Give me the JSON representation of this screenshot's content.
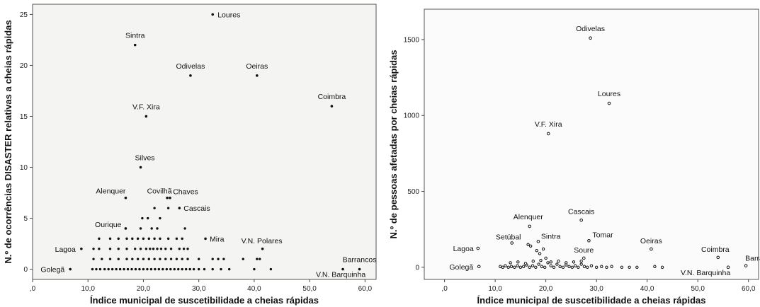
{
  "chart_data": [
    {
      "type": "scatter",
      "title": "",
      "xlabel": "Índice municipal de suscetibilidade a cheias rápidas",
      "ylabel": "N.º de ocorrências DISASTER relativas a cheias rápidas",
      "xlim": [
        0,
        62
      ],
      "ylim": [
        -1,
        26
      ],
      "x_ticks": [
        0,
        10,
        20,
        30,
        40,
        50,
        60
      ],
      "x_tick_labels": [
        ",0",
        "10,0",
        "20,0",
        "30,0",
        "40,0",
        "50,0",
        "60,0"
      ],
      "y_ticks": [
        0,
        5,
        10,
        15,
        20,
        25
      ],
      "y_tick_labels": [
        "0",
        "5",
        "10",
        "15",
        "20",
        "25"
      ],
      "grid": false,
      "labeled_points": [
        {
          "label": "Loures",
          "x": 32.5,
          "y": 25
        },
        {
          "label": "Sintra",
          "x": 18.5,
          "y": 22
        },
        {
          "label": "Odivelas",
          "x": 28.5,
          "y": 19
        },
        {
          "label": "Oeiras",
          "x": 40.5,
          "y": 19
        },
        {
          "label": "Coimbra",
          "x": 54,
          "y": 16
        },
        {
          "label": "V.F. Xira",
          "x": 20.5,
          "y": 15
        },
        {
          "label": "Silves",
          "x": 19.5,
          "y": 10
        },
        {
          "label": "Alenquer",
          "x": 16.8,
          "y": 7
        },
        {
          "label": "Covilhã",
          "x": 24.3,
          "y": 7
        },
        {
          "label": "Chaves",
          "x": 24.8,
          "y": 7
        },
        {
          "label": "Cascais",
          "x": 26.5,
          "y": 6
        },
        {
          "label": "Ourique",
          "x": 16.8,
          "y": 4
        },
        {
          "label": "Mira",
          "x": 31.2,
          "y": 3
        },
        {
          "label": "Lagoa",
          "x": 8.8,
          "y": 2
        },
        {
          "label": "V.N. Polares",
          "x": 41.5,
          "y": 2
        },
        {
          "label": "Barrancos",
          "x": 59,
          "y": 0
        },
        {
          "label": "Golegã",
          "x": 6.8,
          "y": 0
        },
        {
          "label": "V.N. Barquinha",
          "x": 56,
          "y": 0
        }
      ],
      "other_points": [
        [
          10.8,
          0
        ],
        [
          11.5,
          0
        ],
        [
          12.2,
          0
        ],
        [
          13,
          0
        ],
        [
          13.7,
          0
        ],
        [
          14.4,
          0
        ],
        [
          15.1,
          0
        ],
        [
          15.8,
          0
        ],
        [
          16.5,
          0
        ],
        [
          17.2,
          0
        ],
        [
          17.9,
          0
        ],
        [
          18.6,
          0
        ],
        [
          19.3,
          0
        ],
        [
          20,
          0
        ],
        [
          20.7,
          0
        ],
        [
          21.4,
          0
        ],
        [
          22.1,
          0
        ],
        [
          22.8,
          0
        ],
        [
          23.5,
          0
        ],
        [
          24.2,
          0
        ],
        [
          24.9,
          0
        ],
        [
          25.6,
          0
        ],
        [
          26.3,
          0
        ],
        [
          27,
          0
        ],
        [
          27.7,
          0
        ],
        [
          28.4,
          0
        ],
        [
          29.1,
          0
        ],
        [
          30,
          0
        ],
        [
          31,
          0
        ],
        [
          32.5,
          0
        ],
        [
          34,
          0
        ],
        [
          35.5,
          0
        ],
        [
          40,
          0
        ],
        [
          43,
          0
        ],
        [
          11,
          1
        ],
        [
          12.5,
          1
        ],
        [
          14,
          1
        ],
        [
          15.5,
          1
        ],
        [
          17,
          1
        ],
        [
          18,
          1
        ],
        [
          19,
          1
        ],
        [
          20,
          1
        ],
        [
          21,
          1
        ],
        [
          22,
          1
        ],
        [
          23,
          1
        ],
        [
          24,
          1
        ],
        [
          25,
          1
        ],
        [
          26,
          1
        ],
        [
          27,
          1
        ],
        [
          28,
          1
        ],
        [
          30,
          1
        ],
        [
          32.5,
          1
        ],
        [
          33.5,
          1
        ],
        [
          34.5,
          1
        ],
        [
          38,
          1
        ],
        [
          40.5,
          1
        ],
        [
          41,
          1
        ],
        [
          11,
          2
        ],
        [
          12,
          2
        ],
        [
          14,
          2
        ],
        [
          15.5,
          2
        ],
        [
          17,
          2
        ],
        [
          18.5,
          2
        ],
        [
          19.5,
          2
        ],
        [
          20.5,
          2
        ],
        [
          21.2,
          2
        ],
        [
          21.8,
          2
        ],
        [
          22.5,
          2
        ],
        [
          23.2,
          2
        ],
        [
          24,
          2
        ],
        [
          25,
          2
        ],
        [
          26.5,
          2
        ],
        [
          27.3,
          2
        ],
        [
          28,
          2
        ],
        [
          12,
          3
        ],
        [
          14,
          3
        ],
        [
          15.5,
          3
        ],
        [
          17,
          3
        ],
        [
          18,
          3
        ],
        [
          19,
          3
        ],
        [
          20,
          3
        ],
        [
          21,
          3
        ],
        [
          22,
          3
        ],
        [
          23,
          3
        ],
        [
          24.5,
          3
        ],
        [
          26,
          3
        ],
        [
          27,
          3
        ],
        [
          19.5,
          4
        ],
        [
          21.5,
          4
        ],
        [
          22.5,
          4
        ],
        [
          27.5,
          4
        ],
        [
          19.8,
          5
        ],
        [
          20.8,
          5
        ],
        [
          23,
          5
        ],
        [
          22,
          6
        ],
        [
          24.5,
          6
        ]
      ]
    },
    {
      "type": "scatter",
      "title": "",
      "xlabel": "Índice municipal de suscetibilidade a cheias rápidas",
      "ylabel": "N.º de pessoas afetadas por cheias rápidas",
      "xlim": [
        -4,
        62
      ],
      "ylim": [
        -80,
        1700
      ],
      "x_ticks": [
        0,
        10,
        20,
        30,
        40,
        50,
        60
      ],
      "x_tick_labels": [
        ",0",
        "10,0",
        "20,0",
        "30,0",
        "40,0",
        "50,0",
        "60,0"
      ],
      "y_ticks": [
        0,
        500,
        1000,
        1500
      ],
      "y_tick_labels": [
        "0",
        "500",
        "1000",
        "1500"
      ],
      "grid": false,
      "labeled_points": [
        {
          "label": "Odivelas",
          "x": 28.8,
          "y": 1510
        },
        {
          "label": "Loures",
          "x": 32.5,
          "y": 1080
        },
        {
          "label": "V.F. Xira",
          "x": 20.5,
          "y": 880
        },
        {
          "label": "Cascais",
          "x": 27,
          "y": 310
        },
        {
          "label": "Alenquer",
          "x": 16.8,
          "y": 270
        },
        {
          "label": "Tomar",
          "x": 28.5,
          "y": 175
        },
        {
          "label": "Setúbal",
          "x": 13.3,
          "y": 160
        },
        {
          "label": "Sintra",
          "x": 18.5,
          "y": 170
        },
        {
          "label": "Lagoa",
          "x": 6.6,
          "y": 125
        },
        {
          "label": "Oeiras",
          "x": 40.8,
          "y": 120
        },
        {
          "label": "Soure",
          "x": 27.5,
          "y": 60
        },
        {
          "label": "Coimbra",
          "x": 54,
          "y": 65
        },
        {
          "label": "Barrancos",
          "x": 59.5,
          "y": 10
        },
        {
          "label": "Golegã",
          "x": 6.8,
          "y": 5
        },
        {
          "label": "V.N. Barquinha",
          "x": 56,
          "y": 0
        }
      ],
      "other_points": [
        [
          11,
          5
        ],
        [
          11.5,
          0
        ],
        [
          12,
          10
        ],
        [
          12.6,
          0
        ],
        [
          13.2,
          5
        ],
        [
          13.8,
          0
        ],
        [
          14.4,
          10
        ],
        [
          15,
          0
        ],
        [
          15.6,
          5
        ],
        [
          16.2,
          15
        ],
        [
          16.8,
          0
        ],
        [
          17.4,
          10
        ],
        [
          18,
          0
        ],
        [
          18.6,
          20
        ],
        [
          19.2,
          5
        ],
        [
          19.8,
          0
        ],
        [
          20.4,
          30
        ],
        [
          21,
          10
        ],
        [
          21.6,
          0
        ],
        [
          22.2,
          20
        ],
        [
          22.8,
          5
        ],
        [
          23.4,
          0
        ],
        [
          24,
          15
        ],
        [
          24.6,
          5
        ],
        [
          25.2,
          0
        ],
        [
          25.8,
          10
        ],
        [
          26.4,
          0
        ],
        [
          27,
          20
        ],
        [
          27.6,
          5
        ],
        [
          28.2,
          0
        ],
        [
          29,
          10
        ],
        [
          30,
          0
        ],
        [
          31,
          5
        ],
        [
          32,
          0
        ],
        [
          33,
          5
        ],
        [
          35,
          0
        ],
        [
          36.5,
          0
        ],
        [
          38,
          0
        ],
        [
          41.5,
          5
        ],
        [
          43,
          0
        ],
        [
          13,
          30
        ],
        [
          14.5,
          35
        ],
        [
          16,
          25
        ],
        [
          17.5,
          40
        ],
        [
          19,
          45
        ],
        [
          20,
          60
        ],
        [
          21,
          35
        ],
        [
          22.5,
          40
        ],
        [
          24,
          30
        ],
        [
          25.5,
          35
        ],
        [
          27,
          40
        ],
        [
          16.5,
          150
        ],
        [
          18.2,
          110
        ],
        [
          18.8,
          90
        ],
        [
          19.5,
          120
        ],
        [
          17,
          140
        ]
      ]
    }
  ]
}
